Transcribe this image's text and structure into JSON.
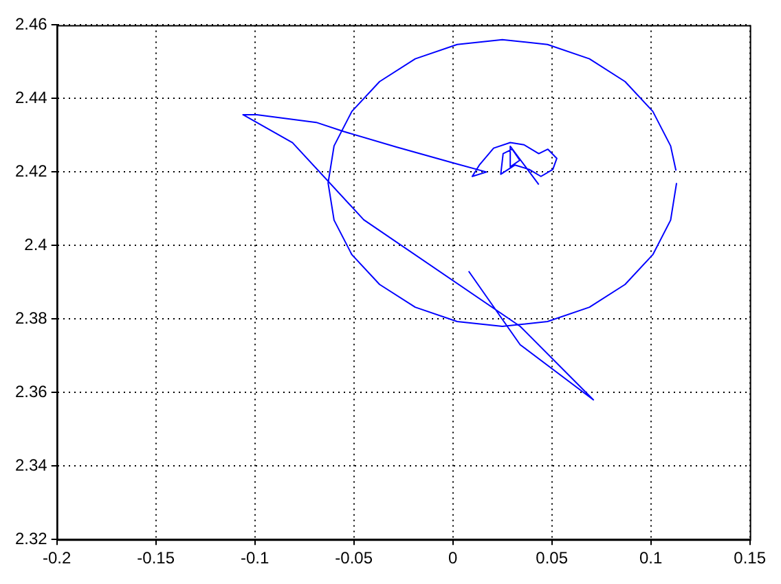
{
  "chart_data": {
    "type": "line",
    "xlim": [
      -0.2,
      0.15
    ],
    "xticks": [
      -0.2,
      -0.15,
      -0.1,
      -0.05,
      0,
      0.05,
      0.1,
      0.15
    ],
    "ylim": [
      2.32,
      2.46
    ],
    "yticks": [
      2.32,
      2.34,
      2.36,
      2.38,
      2.4,
      2.42,
      2.44,
      2.46
    ],
    "grid": true,
    "legend": false,
    "marker": "none",
    "line_style": "solid",
    "series": [
      {
        "color": "#0000ff",
        "x": [
          0.008,
          0.034,
          0.071,
          0.034,
          -0.045,
          -0.081,
          -0.106,
          -0.099,
          -0.069,
          -0.055,
          -0.0285,
          0.0,
          0.017,
          0.0098,
          0.0134,
          0.0206,
          0.029,
          0.036,
          0.0434,
          0.048,
          0.0525,
          0.0505,
          0.0445,
          0.0386,
          0.0314,
          0.0242,
          0.0254,
          0.03,
          0.0338,
          0.029,
          0.029,
          0.0434
        ],
        "values": [
          2.393,
          2.373,
          2.358,
          2.378,
          2.407,
          2.428,
          2.4356,
          2.4356,
          2.4335,
          2.431,
          2.4268,
          2.4225,
          2.42,
          2.4188,
          2.4219,
          2.4265,
          2.428,
          2.4274,
          2.425,
          2.4262,
          2.4237,
          2.4207,
          2.4188,
          2.4207,
          2.4219,
          2.4194,
          2.425,
          2.4262,
          2.4232,
          2.4214,
          2.427,
          2.4166
        ]
      },
      {
        "color": "#0000ff",
        "x": [
          0.1127,
          0.11,
          0.101,
          0.087,
          0.069,
          0.0478,
          0.025,
          0.0022,
          -0.019,
          -0.037,
          -0.051,
          -0.06,
          -0.063,
          -0.06,
          -0.051,
          -0.037,
          -0.019,
          0.0022,
          0.025,
          0.0478,
          0.069,
          0.087,
          0.101,
          0.11,
          0.113
        ],
        "values": [
          2.4204,
          2.4271,
          2.4365,
          2.4446,
          2.4508,
          2.4547,
          2.456,
          2.4547,
          2.4508,
          2.4446,
          2.4365,
          2.4271,
          2.417,
          2.4069,
          2.3975,
          2.3894,
          2.3832,
          2.3793,
          2.378,
          2.3793,
          2.3832,
          2.3894,
          2.3975,
          2.4069,
          2.417
        ]
      }
    ]
  }
}
